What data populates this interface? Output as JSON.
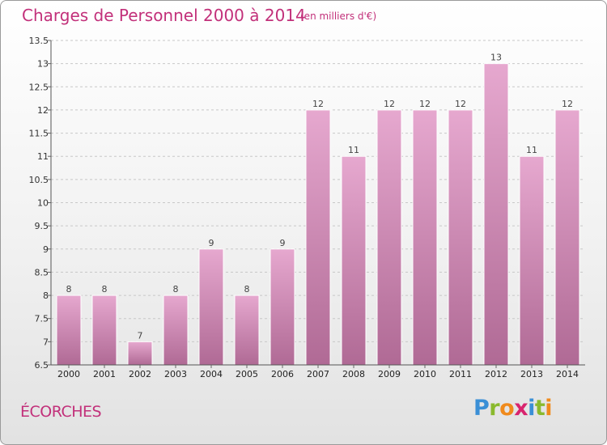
{
  "title": "Charges de Personnel 2000 à 2014",
  "unit_note": "(en milliers d'€)",
  "commune": "ÉCORCHES",
  "logo": {
    "letters": [
      "P",
      "r",
      "o",
      "x",
      "i",
      "t",
      "i"
    ],
    "colors": [
      "#3a8fd6",
      "#8ab92d",
      "#f08a1c",
      "#d8246e",
      "#3a8fd6",
      "#8ab92d",
      "#f08a1c"
    ]
  },
  "colors": {
    "bar_top": "#e6a8cf",
    "bar_bottom": "#b06a95",
    "accent": "#c2307a"
  },
  "chart_data": {
    "type": "bar",
    "title": "Charges de Personnel 2000 à 2014",
    "ylabel": "",
    "xlabel": "",
    "categories": [
      "2000",
      "2001",
      "2002",
      "2003",
      "2004",
      "2005",
      "2006",
      "2007",
      "2008",
      "2009",
      "2010",
      "2011",
      "2012",
      "2013",
      "2014"
    ],
    "values": [
      8,
      8,
      7,
      8,
      9,
      8,
      9,
      12,
      11,
      12,
      12,
      12,
      13,
      11,
      12
    ],
    "value_labels": [
      "8",
      "8",
      "7",
      "8",
      "9",
      "8",
      "9",
      "12",
      "11",
      "12",
      "12",
      "12",
      "13",
      "11",
      "12"
    ],
    "ylim": [
      6.5,
      13.5
    ],
    "yticks": [
      6.5,
      7,
      7.5,
      8,
      8.5,
      9,
      9.5,
      10,
      10.5,
      11,
      11.5,
      12,
      12.5,
      13,
      13.5
    ],
    "ytick_labels": [
      "6.5",
      "7",
      "7.5",
      "8",
      "8.5",
      "9",
      "9.5",
      "10",
      "10.5",
      "11",
      "11.5",
      "12",
      "12.5",
      "13",
      "13.5"
    ],
    "grid": "horizontal dashed"
  }
}
